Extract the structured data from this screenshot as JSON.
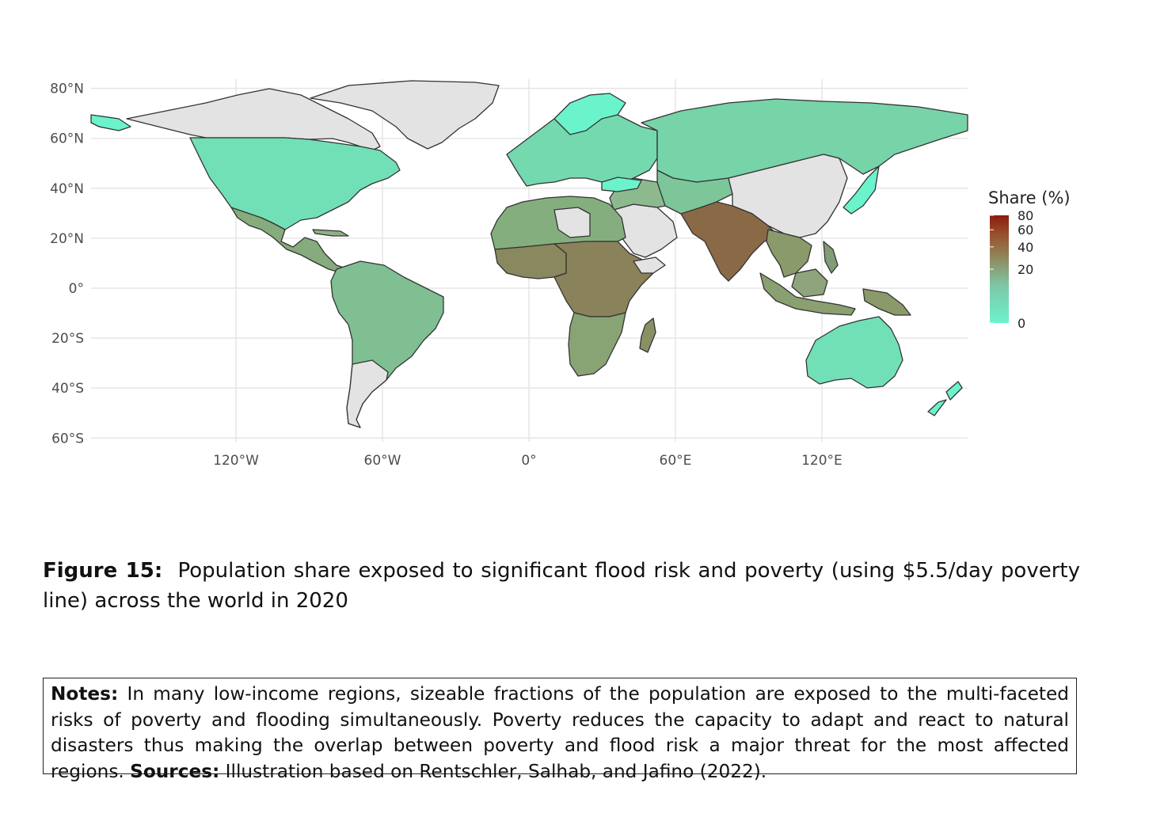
{
  "map": {
    "lat_axis_labels": [
      "80°N",
      "60°N",
      "40°N",
      "20°N",
      "0°",
      "20°S",
      "40°S",
      "60°S"
    ],
    "lon_axis_labels": [
      "120°W",
      "60°W",
      "0°",
      "60°E",
      "120°E"
    ],
    "lat_values": [
      80,
      60,
      40,
      20,
      0,
      -20,
      -40,
      -60
    ],
    "lon_values": [
      -120,
      -60,
      0,
      60,
      120
    ],
    "colors": {
      "no_data": "#e3e3e3",
      "low": "#6bf3cc",
      "mid": "#8aa070",
      "high": "#8b1c0c",
      "coast": "#333333",
      "grid": "#e6e6e6"
    },
    "regions": [
      {
        "name": "North America",
        "share": 1
      },
      {
        "name": "Central America",
        "share": 15
      },
      {
        "name": "South America",
        "share": 8
      },
      {
        "name": "Europe",
        "share": 2
      },
      {
        "name": "Russia",
        "share": 3
      },
      {
        "name": "North Africa",
        "share": 14
      },
      {
        "name": "West Africa",
        "share": 28
      },
      {
        "name": "Central and East Africa",
        "share": 30
      },
      {
        "name": "Southern Africa",
        "share": 18
      },
      {
        "name": "Madagascar",
        "share": 25
      },
      {
        "name": "South Asia",
        "share": 40
      },
      {
        "name": "Southeast Asia",
        "share": 22
      },
      {
        "name": "Indonesia",
        "share": 20
      },
      {
        "name": "New Guinea",
        "share": 22
      },
      {
        "name": "Australia",
        "share": 1
      },
      {
        "name": "Japan",
        "share": 1
      }
    ]
  },
  "legend": {
    "title": "Share (%)",
    "ticks": [
      "80",
      "60",
      "40",
      "20",
      "0"
    ],
    "tick_values": [
      80,
      60,
      40,
      20,
      0
    ]
  },
  "caption": {
    "label": "Figure 15:",
    "text": "Population share exposed to significant flood risk and poverty (using $5.5/day poverty line) across the world in 2020"
  },
  "notes": {
    "notes_label": "Notes:",
    "notes_text": "In many low-income regions, sizeable fractions of the population are exposed to the multi-faceted risks of poverty and flooding simultaneously.  Poverty reduces the capacity to adapt and react to natural disasters thus making the overlap between poverty and flood risk a major threat for the most affected regions.",
    "sources_label": "Sources:",
    "sources_text": "Illustration based on Rentschler, Salhab, and Jafino (2022)."
  }
}
